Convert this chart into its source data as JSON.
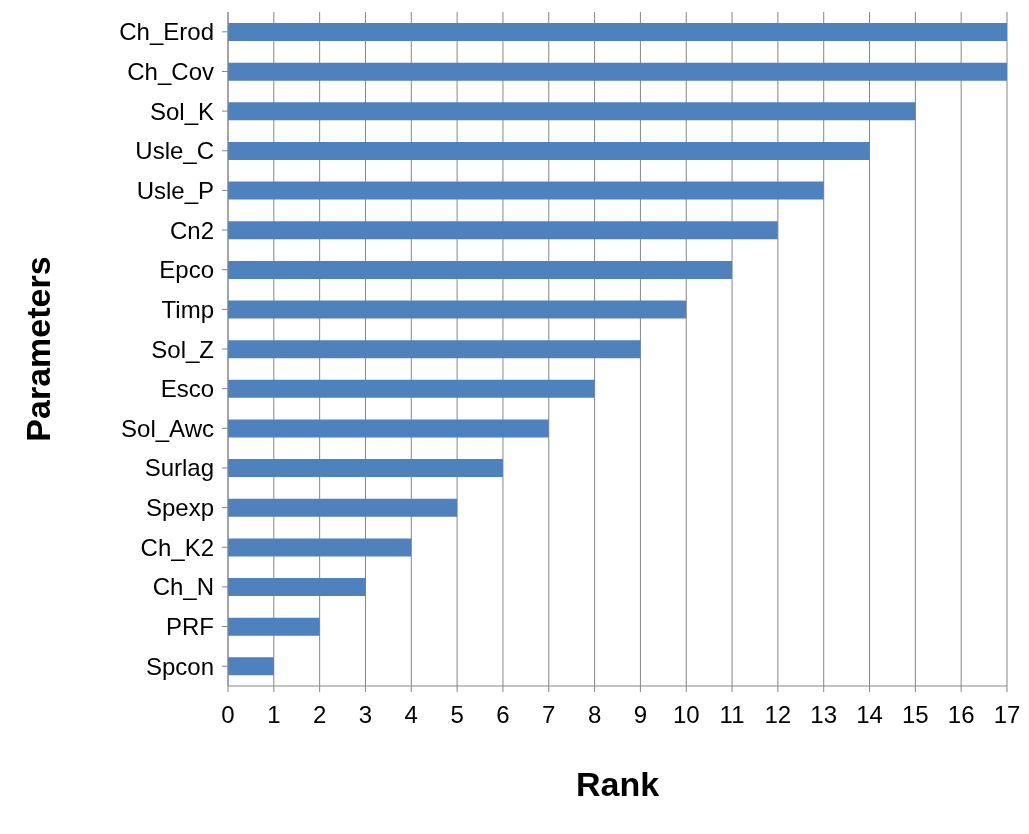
{
  "chart_data": {
    "type": "bar",
    "orientation": "horizontal",
    "xlabel": "Rank",
    "ylabel": "Parameters",
    "categories": [
      "Ch_Erod",
      "Ch_Cov",
      "Sol_K",
      "Usle_C",
      "Usle_P",
      "Cn2",
      "Epco",
      "Timp",
      "Sol_Z",
      "Esco",
      "Sol_Awc",
      "Surlag",
      "Spexp",
      "Ch_K2",
      "Ch_N",
      "PRF",
      "Spcon"
    ],
    "values": [
      17,
      17,
      15,
      14,
      13,
      12,
      11,
      10,
      9,
      8,
      7,
      6,
      5,
      4,
      3,
      2,
      1
    ],
    "color": "#4f81bd",
    "xlim": [
      0,
      17
    ],
    "xticks": [
      0,
      1,
      2,
      3,
      4,
      5,
      6,
      7,
      8,
      9,
      10,
      11,
      12,
      13,
      14,
      15,
      16,
      17
    ],
    "grid": "x"
  }
}
